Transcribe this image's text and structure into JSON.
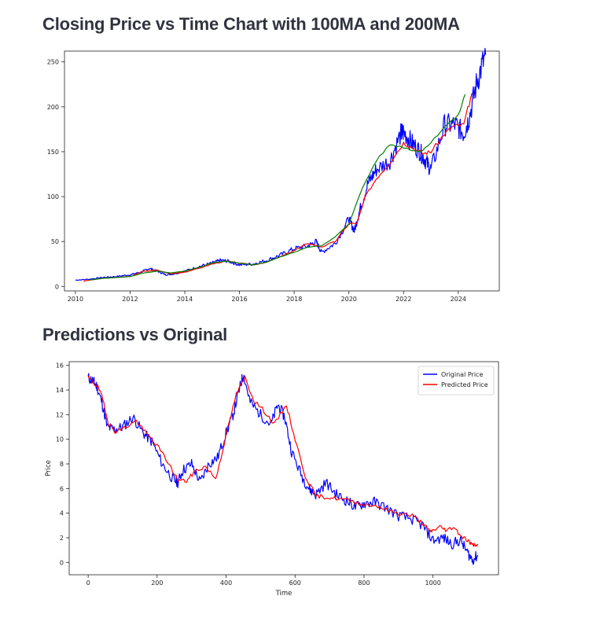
{
  "sections": {
    "title1": "Closing Price vs Time Chart with 100MA and 200MA",
    "title2": "Predictions vs Original"
  },
  "chart_data": [
    {
      "type": "line",
      "title": "Closing Price vs Time Chart with 100MA and 200MA",
      "xlabel": "",
      "ylabel": "",
      "xlim": [
        2009.6,
        2025.5
      ],
      "ylim": [
        -5,
        262
      ],
      "x_ticks": [
        "2010",
        "2012",
        "2014",
        "2016",
        "2018",
        "2020",
        "2022",
        "2024"
      ],
      "y_ticks": [
        "0",
        "50",
        "100",
        "150",
        "200",
        "250"
      ],
      "grid": false,
      "legend": "none",
      "series": [
        {
          "color": "#0000ff",
          "x": [
            2010.0,
            2010.5,
            2011.0,
            2011.5,
            2012.0,
            2012.4,
            2012.7,
            2013.0,
            2013.3,
            2013.6,
            2014.0,
            2014.5,
            2015.0,
            2015.3,
            2015.6,
            2016.0,
            2016.5,
            2017.0,
            2017.5,
            2018.0,
            2018.5,
            2018.8,
            2019.0,
            2019.5,
            2020.0,
            2020.2,
            2020.4,
            2020.7,
            2021.0,
            2021.5,
            2021.9,
            2022.0,
            2022.3,
            2022.6,
            2022.8,
            2023.0,
            2023.5,
            2023.9,
            2024.2,
            2024.4,
            2024.7,
            2025.0
          ],
          "y": [
            7,
            8,
            10,
            11,
            13,
            16,
            20,
            17,
            13,
            14,
            17,
            22,
            26,
            29,
            28,
            24,
            25,
            29,
            35,
            42,
            45,
            50,
            38,
            48,
            75,
            62,
            85,
            115,
            130,
            140,
            170,
            172,
            160,
            150,
            140,
            130,
            180,
            180,
            170,
            188,
            230,
            258
          ]
        },
        {
          "color": "#ff0000",
          "x": [
            2010.3,
            2011.0,
            2012.0,
            2012.5,
            2013.0,
            2013.5,
            2014.0,
            2014.5,
            2015.0,
            2015.5,
            2016.0,
            2016.5,
            2017.0,
            2017.5,
            2018.0,
            2018.5,
            2019.0,
            2019.5,
            2020.0,
            2020.3,
            2020.6,
            2021.0,
            2021.5,
            2022.0,
            2022.3,
            2022.7,
            2023.0,
            2023.5,
            2023.8,
            2024.2,
            2024.5
          ],
          "y": [
            6,
            9,
            11,
            17,
            18,
            14,
            16,
            20,
            25,
            28,
            26,
            24,
            27,
            33,
            40,
            48,
            44,
            50,
            70,
            70,
            100,
            120,
            138,
            160,
            155,
            148,
            150,
            170,
            178,
            180,
            215
          ]
        },
        {
          "color": "#008000",
          "x": [
            2010.5,
            2011.0,
            2012.0,
            2012.5,
            2013.0,
            2013.5,
            2014.0,
            2014.5,
            2015.0,
            2015.5,
            2016.0,
            2016.5,
            2017.0,
            2017.5,
            2018.0,
            2018.5,
            2019.0,
            2019.5,
            2020.0,
            2020.5,
            2021.0,
            2021.5,
            2022.0,
            2022.3,
            2022.6,
            2023.0,
            2023.5,
            2024.0,
            2024.25
          ],
          "y": [
            7,
            9,
            11,
            15,
            17,
            15,
            17,
            21,
            26,
            28,
            26,
            24,
            27,
            33,
            38,
            44,
            45,
            55,
            70,
            110,
            140,
            158,
            155,
            152,
            150,
            160,
            178,
            190,
            214
          ]
        }
      ]
    },
    {
      "type": "line",
      "title": "",
      "xlabel": "Time",
      "ylabel": "Price",
      "xlim": [
        -55,
        1190
      ],
      "ylim": [
        -1,
        16.3
      ],
      "x_ticks": [
        "0",
        "200",
        "400",
        "600",
        "800",
        "1000"
      ],
      "y_ticks": [
        "0",
        "2",
        "4",
        "6",
        "8",
        "10",
        "12",
        "14",
        "16"
      ],
      "grid": false,
      "legend": "top-right",
      "series": [
        {
          "name": "Original Price",
          "color": "#0000ff",
          "x": [
            0,
            15,
            25,
            40,
            55,
            75,
            100,
            130,
            160,
            185,
            215,
            245,
            260,
            275,
            300,
            325,
            350,
            375,
            400,
            420,
            440,
            450,
            470,
            500,
            530,
            550,
            570,
            590,
            620,
            640,
            660,
            690,
            720,
            750,
            775,
            800,
            830,
            860,
            900,
            940,
            970,
            1000,
            1030,
            1055,
            1080,
            1100,
            1115,
            1130
          ],
          "y": [
            15,
            14.7,
            14.3,
            13,
            11,
            10.8,
            11,
            11.8,
            10.5,
            9.8,
            8,
            6.8,
            6.5,
            7.5,
            8,
            6.5,
            8,
            8.5,
            10.5,
            12,
            14.2,
            15.3,
            13,
            12,
            11.2,
            12.8,
            11.8,
            9,
            7,
            6,
            5.5,
            6.5,
            5.5,
            5,
            4.5,
            4.8,
            4.9,
            4.5,
            3.8,
            3.5,
            3,
            1.8,
            2,
            1.5,
            1.8,
            0.8,
            0.2,
            0.6
          ]
        },
        {
          "name": "Predicted Price",
          "color": "#ff0000",
          "x": [
            0,
            15,
            30,
            45,
            60,
            80,
            110,
            140,
            170,
            200,
            230,
            260,
            285,
            310,
            340,
            370,
            400,
            430,
            455,
            480,
            510,
            540,
            575,
            600,
            630,
            660,
            690,
            720,
            760,
            800,
            840,
            870,
            900,
            940,
            970,
            990,
            1000,
            1020,
            1040,
            1060,
            1080,
            1100,
            1115,
            1130
          ],
          "y": [
            15,
            14.6,
            14.2,
            13,
            11.2,
            10.6,
            11,
            11.5,
            10.4,
            9.5,
            8.2,
            6.7,
            6.6,
            7.4,
            7.8,
            6.8,
            10.3,
            13.7,
            15,
            13.2,
            12.3,
            11.2,
            12.8,
            10,
            7,
            5.4,
            5.3,
            5.2,
            5,
            4.7,
            4.6,
            4.2,
            4,
            3.8,
            3.2,
            2.5,
            2.6,
            2.9,
            2.6,
            2.9,
            2.2,
            1.8,
            1.4,
            1.5
          ]
        }
      ]
    }
  ]
}
